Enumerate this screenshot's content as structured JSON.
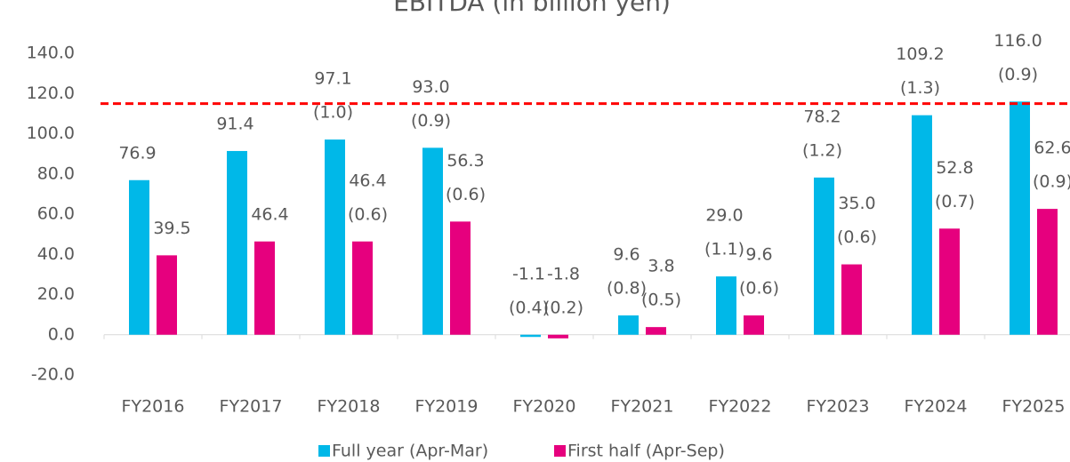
{
  "chart_data": {
    "type": "bar",
    "title": "EBITDA (in billion yen)",
    "categories": [
      "FY2016",
      "FY2017",
      "FY2018",
      "FY2019",
      "FY2020",
      "FY2021",
      "FY2022",
      "FY2023",
      "FY2024",
      "FY2025"
    ],
    "series": [
      {
        "name": "Full year (Apr-Mar)",
        "color": "#00b8e8",
        "values": [
          76.9,
          91.4,
          97.1,
          93.0,
          -1.1,
          9.6,
          29.0,
          78.2,
          109.2,
          116.0
        ],
        "value_labels": [
          "76.9",
          "91.4",
          "97.1",
          "93.0",
          "-1.1",
          "9.6",
          "29.0",
          "78.2",
          "109.2",
          "116.0"
        ],
        "annotations": [
          null,
          null,
          "(1.0)",
          "(0.9)",
          "(0.4)",
          "(0.8)",
          "(1.1)",
          "(1.2)",
          "(1.3)",
          "(0.9)"
        ]
      },
      {
        "name": "First half (Apr-Sep)",
        "color": "#e6007e",
        "values": [
          39.5,
          46.4,
          46.4,
          56.3,
          -1.8,
          3.8,
          9.6,
          35.0,
          52.8,
          62.6
        ],
        "value_labels": [
          "39.5",
          "46.4",
          "46.4",
          "56.3",
          "-1.8",
          "3.8",
          "9.6",
          "35.0",
          "52.8",
          "62.6"
        ],
        "annotations": [
          null,
          null,
          "(0.6)",
          "(0.6)",
          "(0.2)",
          "(0.5)",
          "(0.6)",
          "(0.6)",
          "(0.7)",
          "(0.9)"
        ]
      }
    ],
    "ylim": [
      -20,
      140
    ],
    "yticks": [
      {
        "value": -20,
        "label": "-20.0"
      },
      {
        "value": 0,
        "label": "0.0"
      },
      {
        "value": 20,
        "label": "20.0"
      },
      {
        "value": 40,
        "label": "40.0"
      },
      {
        "value": 60,
        "label": "60.0"
      },
      {
        "value": 80,
        "label": "80.0"
      },
      {
        "value": 100,
        "label": "100.0"
      },
      {
        "value": 120,
        "label": "120.0"
      },
      {
        "value": 140,
        "label": "140.0"
      }
    ],
    "reference_line": {
      "value": 115,
      "color": "#ff0000"
    },
    "grid": false,
    "legend": "bottom"
  }
}
